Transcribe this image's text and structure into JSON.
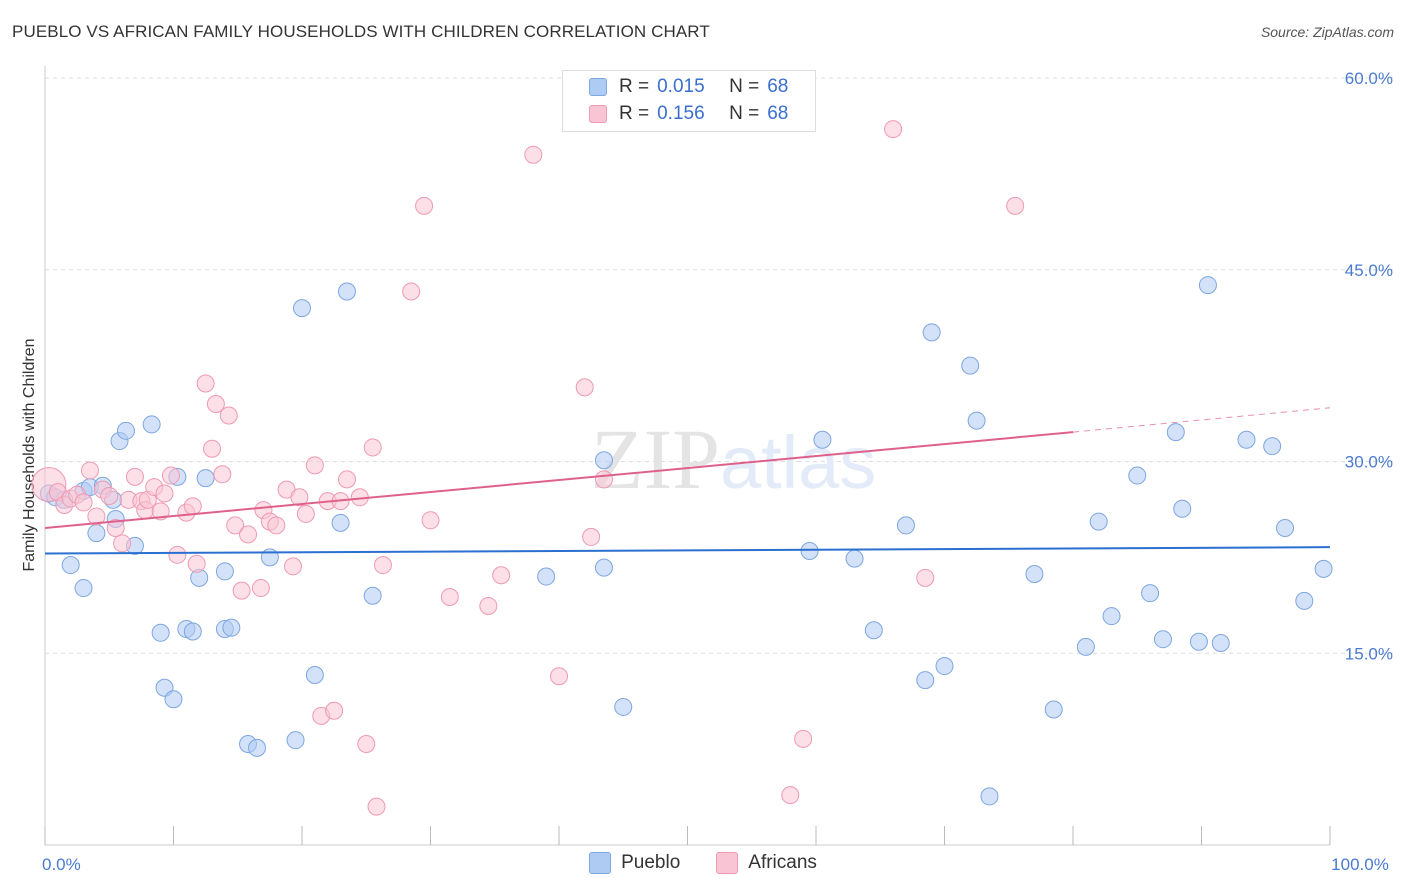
{
  "title": "PUEBLO VS AFRICAN FAMILY HOUSEHOLDS WITH CHILDREN CORRELATION CHART",
  "source": "Source: ZipAtlas.com",
  "watermark": {
    "zip": "ZIP",
    "atlas": "atlas"
  },
  "stats": [
    {
      "r_label": "R =",
      "r_value": "0.015",
      "n_label": "N =",
      "n_value": "68",
      "color": "#aecbf4",
      "border": "#7ea6e0"
    },
    {
      "r_label": "R =",
      "r_value": "0.156",
      "n_label": "N =",
      "n_value": "68",
      "color": "#f9c4d3",
      "border": "#ee9ab4"
    }
  ],
  "legend": [
    {
      "label": "Pueblo",
      "color": "#aecbf4",
      "border": "#7ea6e0"
    },
    {
      "label": "Africans",
      "color": "#f9c4d3",
      "border": "#ee9ab4"
    }
  ],
  "chart_data": {
    "type": "scatter",
    "title": "PUEBLO VS AFRICAN FAMILY HOUSEHOLDS WITH CHILDREN CORRELATION CHART",
    "xlabel": "",
    "ylabel": "Family Households with Children",
    "xlim": [
      0,
      100
    ],
    "ylim": [
      0,
      60
    ],
    "x_ticks": [
      0,
      10,
      20,
      30,
      40,
      50,
      60,
      70,
      80,
      90,
      100
    ],
    "x_tick_labels": [
      {
        "value": 0,
        "label": "0.0%"
      },
      {
        "value": 100,
        "label": "100.0%"
      }
    ],
    "y_ticks": [
      {
        "value": 15,
        "label": "15.0%"
      },
      {
        "value": 30,
        "label": "30.0%"
      },
      {
        "value": 45,
        "label": "45.0%"
      },
      {
        "value": 60,
        "label": "60.0%"
      }
    ],
    "grid": true,
    "legend_position": "bottom-center",
    "series": [
      {
        "name": "Pueblo",
        "color": "#7ea6e0",
        "fill": "#aecbf4",
        "line_color": "#2b6fd0",
        "trend": {
          "x": [
            0,
            100
          ],
          "y": [
            22.8,
            23.3
          ],
          "dash_from": null
        },
        "points": [
          [
            0.3,
            27.5
          ],
          [
            0.8,
            27.2
          ],
          [
            1.5,
            27.0
          ],
          [
            2.0,
            21.9
          ],
          [
            3.0,
            27.7
          ],
          [
            3.0,
            20.1
          ],
          [
            3.5,
            28.0
          ],
          [
            4.0,
            24.4
          ],
          [
            4.5,
            28.1
          ],
          [
            5.5,
            25.5
          ],
          [
            5.3,
            27.0
          ],
          [
            5.8,
            31.6
          ],
          [
            6.3,
            32.4
          ],
          [
            7.0,
            23.4
          ],
          [
            8.3,
            32.9
          ],
          [
            9.0,
            16.6
          ],
          [
            9.3,
            12.3
          ],
          [
            10.0,
            11.4
          ],
          [
            10.3,
            28.8
          ],
          [
            11.0,
            16.9
          ],
          [
            11.5,
            16.7
          ],
          [
            12.0,
            20.9
          ],
          [
            12.5,
            28.7
          ],
          [
            14.0,
            21.4
          ],
          [
            14.0,
            16.9
          ],
          [
            14.5,
            17.0
          ],
          [
            15.8,
            7.9
          ],
          [
            16.5,
            7.6
          ],
          [
            17.5,
            22.5
          ],
          [
            19.5,
            8.2
          ],
          [
            20.0,
            42.0
          ],
          [
            21.0,
            13.3
          ],
          [
            23.0,
            25.2
          ],
          [
            23.5,
            43.3
          ],
          [
            25.5,
            19.5
          ],
          [
            39.0,
            21.0
          ],
          [
            43.5,
            21.7
          ],
          [
            43.5,
            30.1
          ],
          [
            45.0,
            10.8
          ],
          [
            59.5,
            23.0
          ],
          [
            60.5,
            31.7
          ],
          [
            63.0,
            22.4
          ],
          [
            64.5,
            16.8
          ],
          [
            67.0,
            25.0
          ],
          [
            68.5,
            12.9
          ],
          [
            69.0,
            40.1
          ],
          [
            70.0,
            14.0
          ],
          [
            72.0,
            37.5
          ],
          [
            72.5,
            33.2
          ],
          [
            73.5,
            3.8
          ],
          [
            77.0,
            21.2
          ],
          [
            78.5,
            10.6
          ],
          [
            81.0,
            15.5
          ],
          [
            82.0,
            25.3
          ],
          [
            83.0,
            17.9
          ],
          [
            85.0,
            28.9
          ],
          [
            86.0,
            19.7
          ],
          [
            87.0,
            16.1
          ],
          [
            88.0,
            32.3
          ],
          [
            88.5,
            26.3
          ],
          [
            89.8,
            15.9
          ],
          [
            90.5,
            43.8
          ],
          [
            91.5,
            15.8
          ],
          [
            93.5,
            31.7
          ],
          [
            95.5,
            31.2
          ],
          [
            96.5,
            24.8
          ],
          [
            98.0,
            19.1
          ],
          [
            99.5,
            21.6
          ]
        ]
      },
      {
        "name": "Africans",
        "color": "#ee9ab4",
        "fill": "#f9c4d3",
        "line_color": "#e0608c",
        "trend": {
          "x": [
            0,
            80,
            100
          ],
          "y": [
            24.8,
            32.3,
            34.2
          ],
          "dash_from": 80
        },
        "points": [
          [
            0.3,
            28.2
          ],
          [
            1.0,
            27.6
          ],
          [
            1.5,
            26.6
          ],
          [
            2.0,
            27.1
          ],
          [
            2.5,
            27.4
          ],
          [
            3.0,
            26.8
          ],
          [
            3.5,
            29.3
          ],
          [
            4.0,
            25.7
          ],
          [
            4.5,
            27.8
          ],
          [
            5.0,
            27.3
          ],
          [
            5.5,
            24.8
          ],
          [
            6.0,
            23.6
          ],
          [
            6.5,
            27.0
          ],
          [
            7.0,
            28.8
          ],
          [
            7.5,
            26.9
          ],
          [
            7.8,
            26.2
          ],
          [
            8.0,
            27.0
          ],
          [
            8.5,
            28.0
          ],
          [
            9.0,
            26.1
          ],
          [
            9.3,
            27.5
          ],
          [
            9.8,
            28.9
          ],
          [
            10.3,
            22.7
          ],
          [
            11.0,
            26.0
          ],
          [
            11.5,
            26.5
          ],
          [
            11.8,
            22.0
          ],
          [
            12.5,
            36.1
          ],
          [
            13.0,
            31.0
          ],
          [
            13.3,
            34.5
          ],
          [
            13.8,
            29.0
          ],
          [
            14.3,
            33.6
          ],
          [
            14.8,
            25.0
          ],
          [
            15.3,
            19.9
          ],
          [
            15.8,
            24.3
          ],
          [
            16.8,
            20.1
          ],
          [
            17.0,
            26.2
          ],
          [
            17.5,
            25.3
          ],
          [
            18.0,
            25.0
          ],
          [
            18.8,
            27.8
          ],
          [
            19.3,
            21.8
          ],
          [
            19.8,
            27.2
          ],
          [
            20.3,
            25.9
          ],
          [
            21.0,
            29.7
          ],
          [
            21.5,
            10.1
          ],
          [
            22.0,
            26.9
          ],
          [
            22.5,
            10.5
          ],
          [
            23.0,
            26.9
          ],
          [
            23.5,
            28.6
          ],
          [
            24.5,
            27.2
          ],
          [
            25.0,
            7.9
          ],
          [
            25.5,
            31.1
          ],
          [
            25.8,
            3.0
          ],
          [
            26.3,
            21.9
          ],
          [
            28.5,
            43.3
          ],
          [
            29.5,
            50.0
          ],
          [
            30.0,
            25.4
          ],
          [
            31.5,
            19.4
          ],
          [
            34.5,
            18.7
          ],
          [
            35.5,
            21.1
          ],
          [
            38.0,
            54.0
          ],
          [
            40.0,
            13.2
          ],
          [
            42.5,
            24.1
          ],
          [
            42.0,
            35.8
          ],
          [
            43.5,
            28.6
          ],
          [
            58.0,
            3.9
          ],
          [
            59.0,
            8.3
          ],
          [
            68.5,
            20.9
          ],
          [
            66.0,
            56.0
          ],
          [
            75.5,
            50.0
          ]
        ]
      }
    ]
  }
}
